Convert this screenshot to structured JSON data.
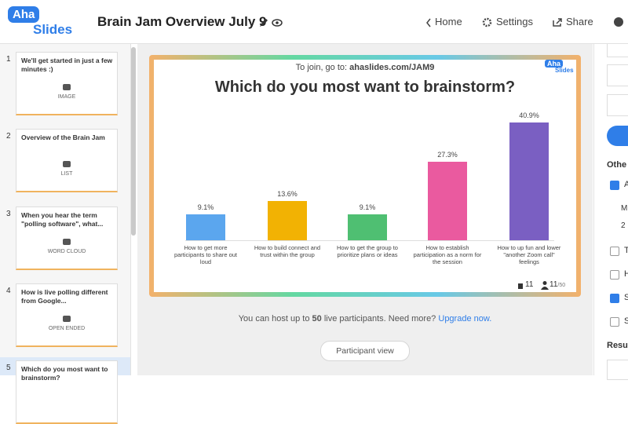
{
  "header": {
    "logo": {
      "top": "Aha",
      "bottom": "Slides"
    },
    "title": "Brain Jam Overview July 9",
    "nav": [
      "Home",
      "Settings",
      "Share"
    ]
  },
  "sidebar": {
    "slides": [
      {
        "number": 1,
        "title": "We'll get started in just a few minutes :)",
        "type": "IMAGE"
      },
      {
        "number": 2,
        "title": "Overview of the Brain Jam",
        "type": "LIST"
      },
      {
        "number": 3,
        "title": "When you hear the term \"polling software\", what...",
        "type": "WORD CLOUD"
      },
      {
        "number": 4,
        "title": "How is live polling different from Google...",
        "type": "OPEN ENDED"
      },
      {
        "number": 5,
        "title": "Which do you most want to brainstorm?"
      }
    ]
  },
  "slide": {
    "join_prefix": "To join, go to:",
    "join_url": "ahaslides.com/JAM9",
    "logo": {
      "top": "Aha",
      "bottom": "Slides"
    },
    "reactions": 11,
    "participants": 11,
    "capacity": "/50"
  },
  "chart_data": {
    "type": "bar",
    "title": "Which do you most want to brainstorm?",
    "categories": [
      "How to get more participants to share out loud",
      "How to build connect and trust within the group",
      "How to get the group to prioritize plans or ideas",
      "How to establish participation as a norm for the session",
      "How to up fun and lower \"another Zoom call\" feelings"
    ],
    "values": [
      9.1,
      13.6,
      9.1,
      27.3,
      40.9
    ],
    "value_labels": [
      "9.1%",
      "13.6%",
      "9.1%",
      "27.3%",
      "40.9%"
    ],
    "colors": [
      "#5ba6ee",
      "#f2b203",
      "#4fbf72",
      "#ea5a9f",
      "#7a5fc2"
    ]
  },
  "footer": {
    "notice": [
      "You can host up to",
      "50",
      "live participants. Need more?"
    ],
    "upgrade": "Upgrade now.",
    "participant_view": "Participant view"
  },
  "right_panel": {
    "section": "Othe",
    "field": "M",
    "field_value": "2",
    "checkboxes": [
      "A",
      "T",
      "H",
      "S",
      "S"
    ],
    "results": "Resu"
  }
}
